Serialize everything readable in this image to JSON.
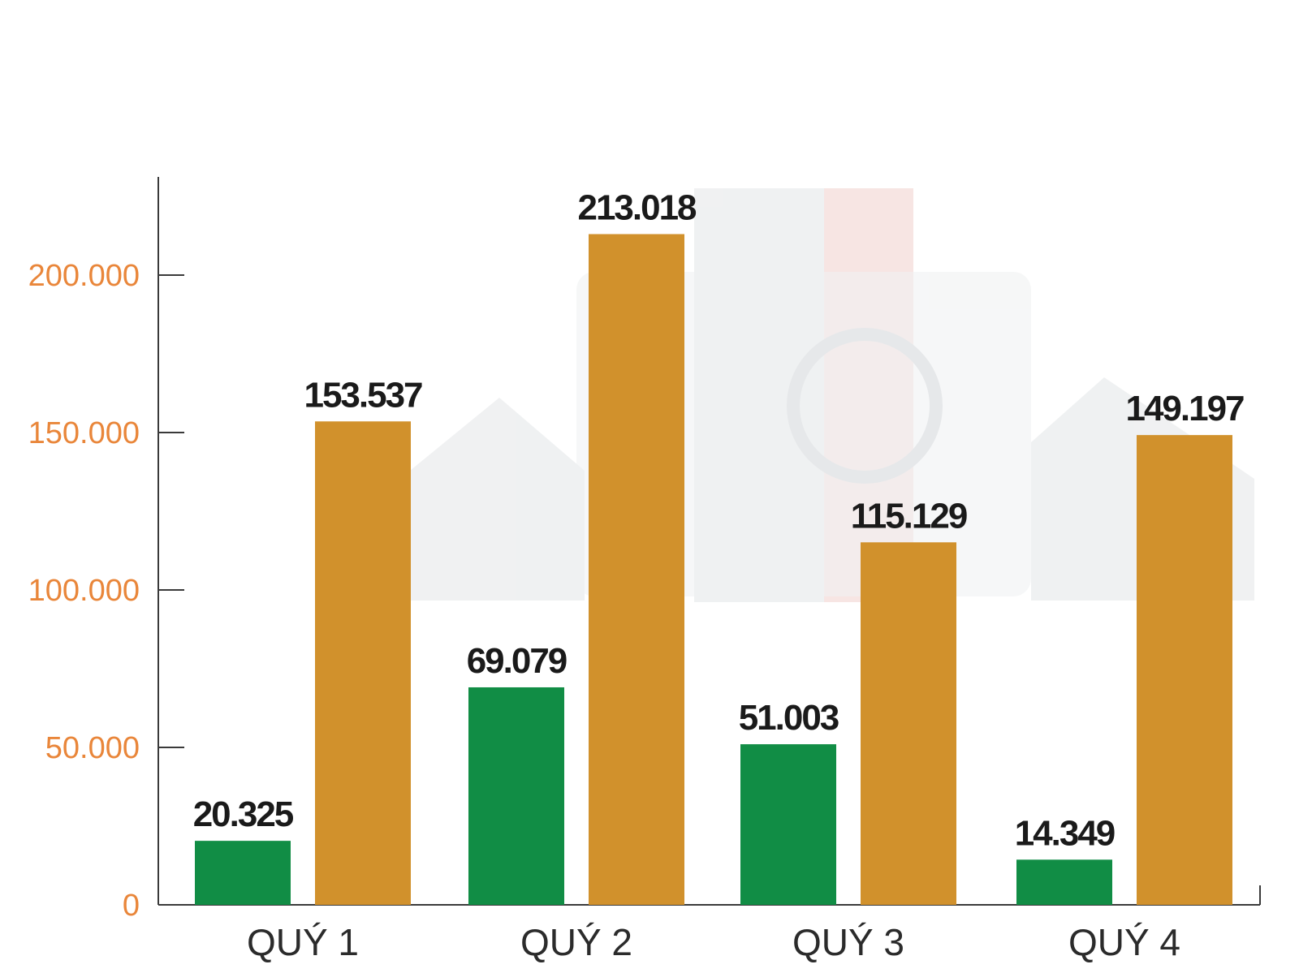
{
  "chart_data": {
    "type": "bar",
    "categories": [
      "QUÝ 1",
      "QUÝ 2",
      "QUÝ 3",
      "QUÝ 4"
    ],
    "series": [
      {
        "values": [
          20325,
          69079,
          51003,
          14349
        ],
        "color": "#118d45"
      },
      {
        "values": [
          153537,
          213018,
          115129,
          149197
        ],
        "color": "#d1912c"
      }
    ],
    "value_labels": [
      [
        "20.325",
        "69.079",
        "51.003",
        "14.349"
      ],
      [
        "153.537",
        "213.018",
        "115.129",
        "149.197"
      ]
    ],
    "y_ticks": [
      {
        "value": 0,
        "label": "0"
      },
      {
        "value": 50000,
        "label": "50.000"
      },
      {
        "value": 100000,
        "label": "100.000"
      },
      {
        "value": 150000,
        "label": "150.000"
      },
      {
        "value": 200000,
        "label": "200.000"
      }
    ],
    "ylim": [
      0,
      230000
    ],
    "title": "",
    "xlabel": "",
    "ylabel": "",
    "grid": false,
    "tick_color": "#e9863a"
  }
}
